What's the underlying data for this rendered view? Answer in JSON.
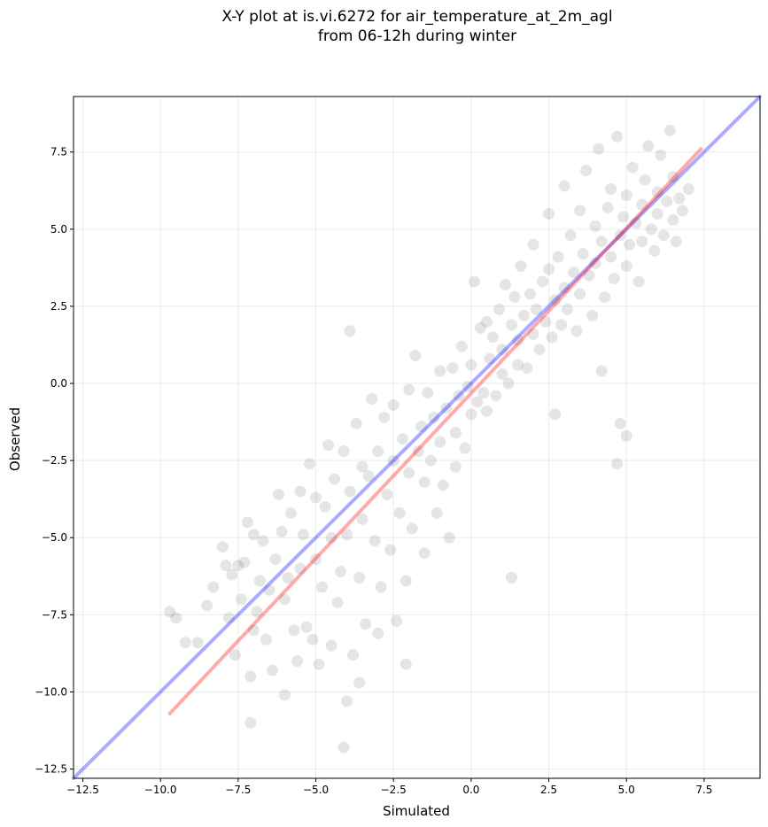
{
  "chart_data": {
    "type": "scatter",
    "title_line1": "X-Y plot at is.vi.6272 for air_temperature_at_2m_agl",
    "title_line2": "from 06-12h during winter",
    "xlabel": "Simulated",
    "ylabel": "Observed",
    "xlim": [
      -12.8,
      9.3
    ],
    "ylim": [
      -12.8,
      9.3
    ],
    "xticks": [
      -12.5,
      -10.0,
      -7.5,
      -5.0,
      -2.5,
      0.0,
      2.5,
      5.0,
      7.5
    ],
    "yticks": [
      -12.5,
      -10.0,
      -7.5,
      -5.0,
      -2.5,
      0.0,
      2.5,
      5.0,
      7.5
    ],
    "tick_labels": [
      "−12.5",
      "−10.0",
      "−7.5",
      "−5.0",
      "−2.5",
      "0.0",
      "2.5",
      "5.0",
      "7.5"
    ],
    "grid": true,
    "point_color": "#000000",
    "point_alpha": 0.1,
    "series": [
      {
        "style": "scatter",
        "x": [
          -9.7,
          -9.5,
          -9.2,
          -8.8,
          -8.5,
          -8.3,
          -8.0,
          -7.9,
          -7.8,
          -7.7,
          -7.6,
          -7.5,
          -7.4,
          -7.3,
          -7.2,
          -7.1,
          -7.0,
          -7.0,
          -6.9,
          -6.8,
          -6.7,
          -6.6,
          -6.5,
          -6.4,
          -6.3,
          -6.2,
          -6.1,
          -6.0,
          -6.0,
          -5.9,
          -5.8,
          -5.7,
          -5.6,
          -5.5,
          -5.5,
          -5.4,
          -5.3,
          -5.2,
          -5.1,
          -5.0,
          -5.0,
          -4.9,
          -4.8,
          -4.7,
          -4.6,
          -4.5,
          -4.5,
          -4.4,
          -4.3,
          -4.2,
          -4.1,
          -4.0,
          -4.0,
          -3.9,
          -3.8,
          -3.7,
          -3.6,
          -3.5,
          -3.5,
          -3.4,
          -3.3,
          -3.2,
          -3.1,
          -3.0,
          -3.0,
          -2.9,
          -2.8,
          -2.7,
          -2.6,
          -2.5,
          -2.5,
          -2.4,
          -2.3,
          -2.2,
          -2.1,
          -2.0,
          -2.0,
          -1.9,
          -1.8,
          -1.7,
          -1.6,
          -1.5,
          -1.5,
          -1.4,
          -1.3,
          -1.2,
          -1.1,
          -1.0,
          -1.0,
          -0.9,
          -0.8,
          -0.7,
          -0.6,
          -0.5,
          -0.5,
          -0.4,
          -0.3,
          -0.2,
          -0.1,
          0.0,
          0.0,
          0.1,
          0.2,
          0.3,
          0.4,
          0.5,
          0.5,
          0.6,
          0.7,
          0.8,
          0.9,
          1.0,
          1.0,
          1.1,
          1.2,
          1.3,
          1.4,
          1.5,
          1.5,
          1.6,
          1.7,
          1.8,
          1.9,
          2.0,
          2.0,
          2.1,
          2.2,
          2.3,
          2.4,
          2.5,
          2.5,
          2.6,
          2.7,
          2.8,
          2.9,
          3.0,
          3.0,
          3.1,
          3.2,
          3.3,
          3.4,
          3.5,
          3.5,
          3.6,
          3.7,
          3.8,
          3.9,
          4.0,
          4.0,
          4.1,
          4.2,
          4.3,
          4.4,
          4.5,
          4.5,
          4.6,
          4.7,
          4.8,
          4.9,
          5.0,
          5.0,
          5.1,
          5.2,
          5.3,
          5.4,
          5.5,
          5.5,
          5.6,
          5.7,
          5.8,
          5.9,
          6.0,
          6.0,
          6.1,
          6.2,
          6.3,
          6.4,
          6.5,
          6.5,
          6.6,
          6.7,
          6.8,
          7.0,
          4.8,
          5.0,
          4.7,
          -4.1,
          -7.1,
          -3.6,
          -3.9,
          -2.1,
          2.7,
          1.3,
          4.2
        ],
        "y": [
          -7.4,
          -7.6,
          -8.4,
          -8.4,
          -7.2,
          -6.6,
          -5.3,
          -5.9,
          -7.6,
          -6.2,
          -8.8,
          -5.9,
          -7.0,
          -5.8,
          -4.5,
          -9.5,
          -8.0,
          -4.9,
          -7.4,
          -6.4,
          -5.1,
          -8.3,
          -6.7,
          -9.3,
          -5.7,
          -3.6,
          -4.8,
          -10.1,
          -7.0,
          -6.3,
          -4.2,
          -8.0,
          -9.0,
          -3.5,
          -6.0,
          -4.9,
          -7.9,
          -2.6,
          -8.3,
          -5.7,
          -3.7,
          -9.1,
          -6.6,
          -4.0,
          -2.0,
          -8.5,
          -5.0,
          -3.1,
          -7.1,
          -6.1,
          -2.2,
          -10.3,
          -4.9,
          -3.5,
          -8.8,
          -1.3,
          -6.3,
          -2.7,
          -4.4,
          -7.8,
          -3.0,
          -0.5,
          -5.1,
          -2.2,
          -8.1,
          -6.6,
          -1.1,
          -3.6,
          -5.4,
          -0.7,
          -2.5,
          -7.7,
          -4.2,
          -1.8,
          -6.4,
          -0.2,
          -2.9,
          -4.7,
          0.9,
          -2.2,
          -1.4,
          -5.5,
          -3.2,
          -0.3,
          -2.5,
          -1.1,
          -4.2,
          0.4,
          -1.9,
          -3.3,
          -0.8,
          -5.0,
          0.5,
          -1.6,
          -2.7,
          -0.4,
          1.2,
          -2.1,
          -0.1,
          0.6,
          -1.0,
          3.3,
          -0.6,
          1.8,
          -0.3,
          2.0,
          -0.9,
          0.8,
          1.5,
          -0.4,
          2.4,
          0.3,
          1.1,
          3.2,
          0.0,
          1.9,
          2.8,
          0.6,
          1.4,
          3.8,
          2.2,
          0.5,
          2.9,
          1.6,
          4.5,
          2.4,
          1.1,
          3.3,
          2.0,
          5.5,
          3.7,
          1.5,
          2.7,
          4.1,
          1.9,
          6.4,
          3.1,
          2.4,
          4.8,
          3.6,
          1.7,
          5.6,
          2.9,
          4.2,
          6.9,
          3.5,
          2.2,
          5.1,
          3.9,
          7.6,
          4.6,
          2.8,
          5.7,
          4.1,
          6.3,
          3.4,
          8.0,
          4.8,
          5.4,
          3.8,
          6.1,
          4.5,
          7.0,
          5.2,
          3.3,
          5.8,
          4.6,
          6.6,
          7.7,
          5.0,
          4.3,
          6.2,
          5.5,
          7.4,
          4.8,
          5.9,
          8.2,
          5.3,
          6.7,
          4.6,
          6.0,
          5.6,
          6.3,
          -1.3,
          -1.7,
          -2.6,
          -11.8,
          -11.0,
          -9.7,
          1.7,
          -9.1,
          -1.0,
          -6.3,
          0.4
        ]
      },
      {
        "style": "line",
        "color": "#0000ff",
        "alpha": 0.33,
        "x": [
          -12.8,
          9.3
        ],
        "y": [
          -12.8,
          9.3
        ]
      },
      {
        "style": "line",
        "color": "#ff0000",
        "alpha": 0.33,
        "x": [
          -9.7,
          7.4
        ],
        "y": [
          -10.7,
          7.6
        ]
      }
    ]
  }
}
